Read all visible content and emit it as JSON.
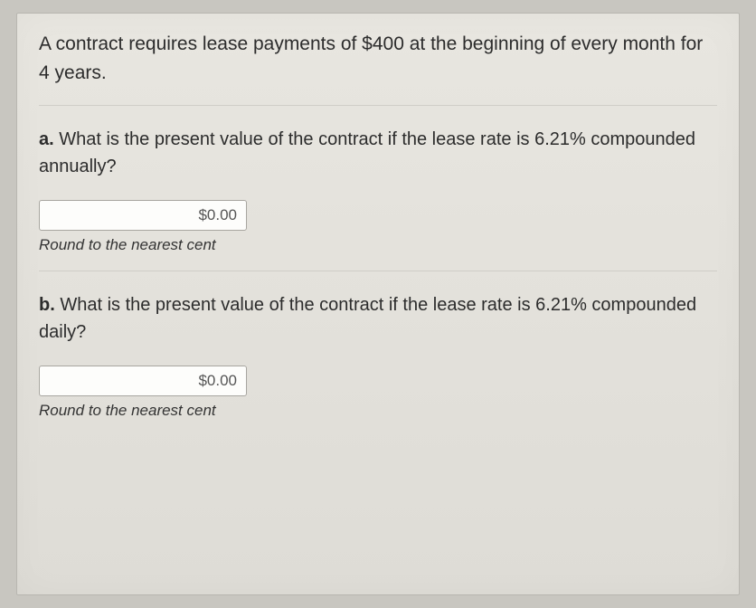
{
  "prompt": "A contract requires lease payments of $400 at the beginning of every month for 4 years.",
  "parts": {
    "a": {
      "label": "a.",
      "question": " What is the present value of the contract if the lease rate is 6.21% compounded annually?",
      "input_value": "$0.00",
      "hint": "Round to the nearest cent"
    },
    "b": {
      "label": "b.",
      "question": " What is the present value of the contract if the lease rate is 6.21% compounded daily?",
      "input_value": "$0.00",
      "hint": "Round to the nearest cent"
    }
  }
}
